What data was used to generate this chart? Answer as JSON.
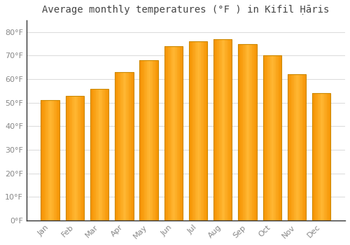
{
  "title": "Average monthly temperatures (°F ) in Kifil Ḥāris",
  "months": [
    "Jan",
    "Feb",
    "Mar",
    "Apr",
    "May",
    "Jun",
    "Jul",
    "Aug",
    "Sep",
    "Oct",
    "Nov",
    "Dec"
  ],
  "values": [
    51,
    53,
    56,
    63,
    68,
    74,
    76,
    77,
    75,
    70,
    62,
    54
  ],
  "bar_color_center": "#FFB733",
  "bar_color_edge": "#F59200",
  "background_color": "#FFFFFF",
  "grid_color": "#DDDDDD",
  "ylim": [
    0,
    85
  ],
  "yticks": [
    0,
    10,
    20,
    30,
    40,
    50,
    60,
    70,
    80
  ],
  "title_fontsize": 10,
  "tick_fontsize": 8,
  "tick_color": "#888888",
  "spine_color": "#333333"
}
